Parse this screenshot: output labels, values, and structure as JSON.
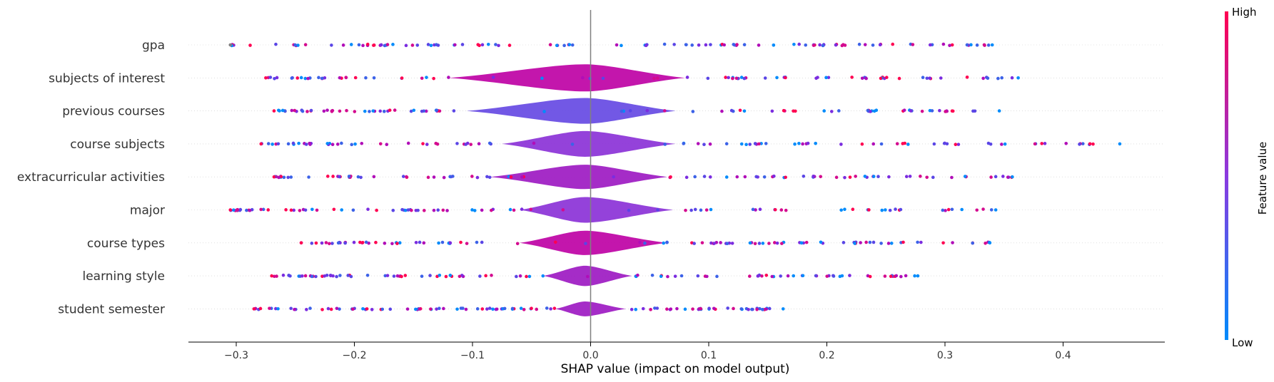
{
  "chart_data": {
    "type": "scatter",
    "subtype": "shap-violin-summary",
    "title": "",
    "xlabel": "SHAP value (impact on model output)",
    "ylabel": "",
    "xlim": [
      -0.345,
      0.485
    ],
    "xticks": [
      -0.3,
      -0.2,
      -0.1,
      0.0,
      0.1,
      0.2,
      0.3,
      0.4
    ],
    "xtick_labels": [
      "−0.3",
      "−0.2",
      "−0.1",
      "0.0",
      "0.1",
      "0.2",
      "0.3",
      "0.4"
    ],
    "zero_line": 0.0,
    "features": [
      {
        "name": "gpa",
        "min": -0.305,
        "max": 0.34,
        "core": [
          -0.09,
          0.09
        ],
        "peak": 0.1
      },
      {
        "name": "subjects of interest",
        "min": -0.275,
        "max": 0.362,
        "core": [
          -0.12,
          0.08
        ],
        "peak": 1.0
      },
      {
        "name": "previous courses",
        "min": -0.268,
        "max": 0.346,
        "core": [
          -0.105,
          0.072
        ],
        "peak": 0.95
      },
      {
        "name": "course subjects",
        "min": -0.279,
        "max": 0.448,
        "core": [
          -0.075,
          0.072
        ],
        "peak": 0.95
      },
      {
        "name": "extracurricular activities",
        "min": -0.268,
        "max": 0.357,
        "core": [
          -0.085,
          0.065
        ],
        "peak": 0.9
      },
      {
        "name": "major",
        "min": -0.305,
        "max": 0.343,
        "core": [
          -0.06,
          0.07
        ],
        "peak": 0.95
      },
      {
        "name": "course types",
        "min": -0.245,
        "max": 0.338,
        "core": [
          -0.06,
          0.065
        ],
        "peak": 0.9
      },
      {
        "name": "learning style",
        "min": -0.27,
        "max": 0.277,
        "core": [
          -0.04,
          0.035
        ],
        "peak": 0.75
      },
      {
        "name": "student semester",
        "min": -0.285,
        "max": 0.163,
        "core": [
          -0.03,
          0.03
        ],
        "peak": 0.55
      }
    ],
    "colorbar": {
      "label": "Feature value",
      "high_label": "High",
      "low_label": "Low",
      "high_color": "#ff0051",
      "low_color": "#008bfb"
    },
    "grid": false,
    "legend": "colorbar-right"
  }
}
